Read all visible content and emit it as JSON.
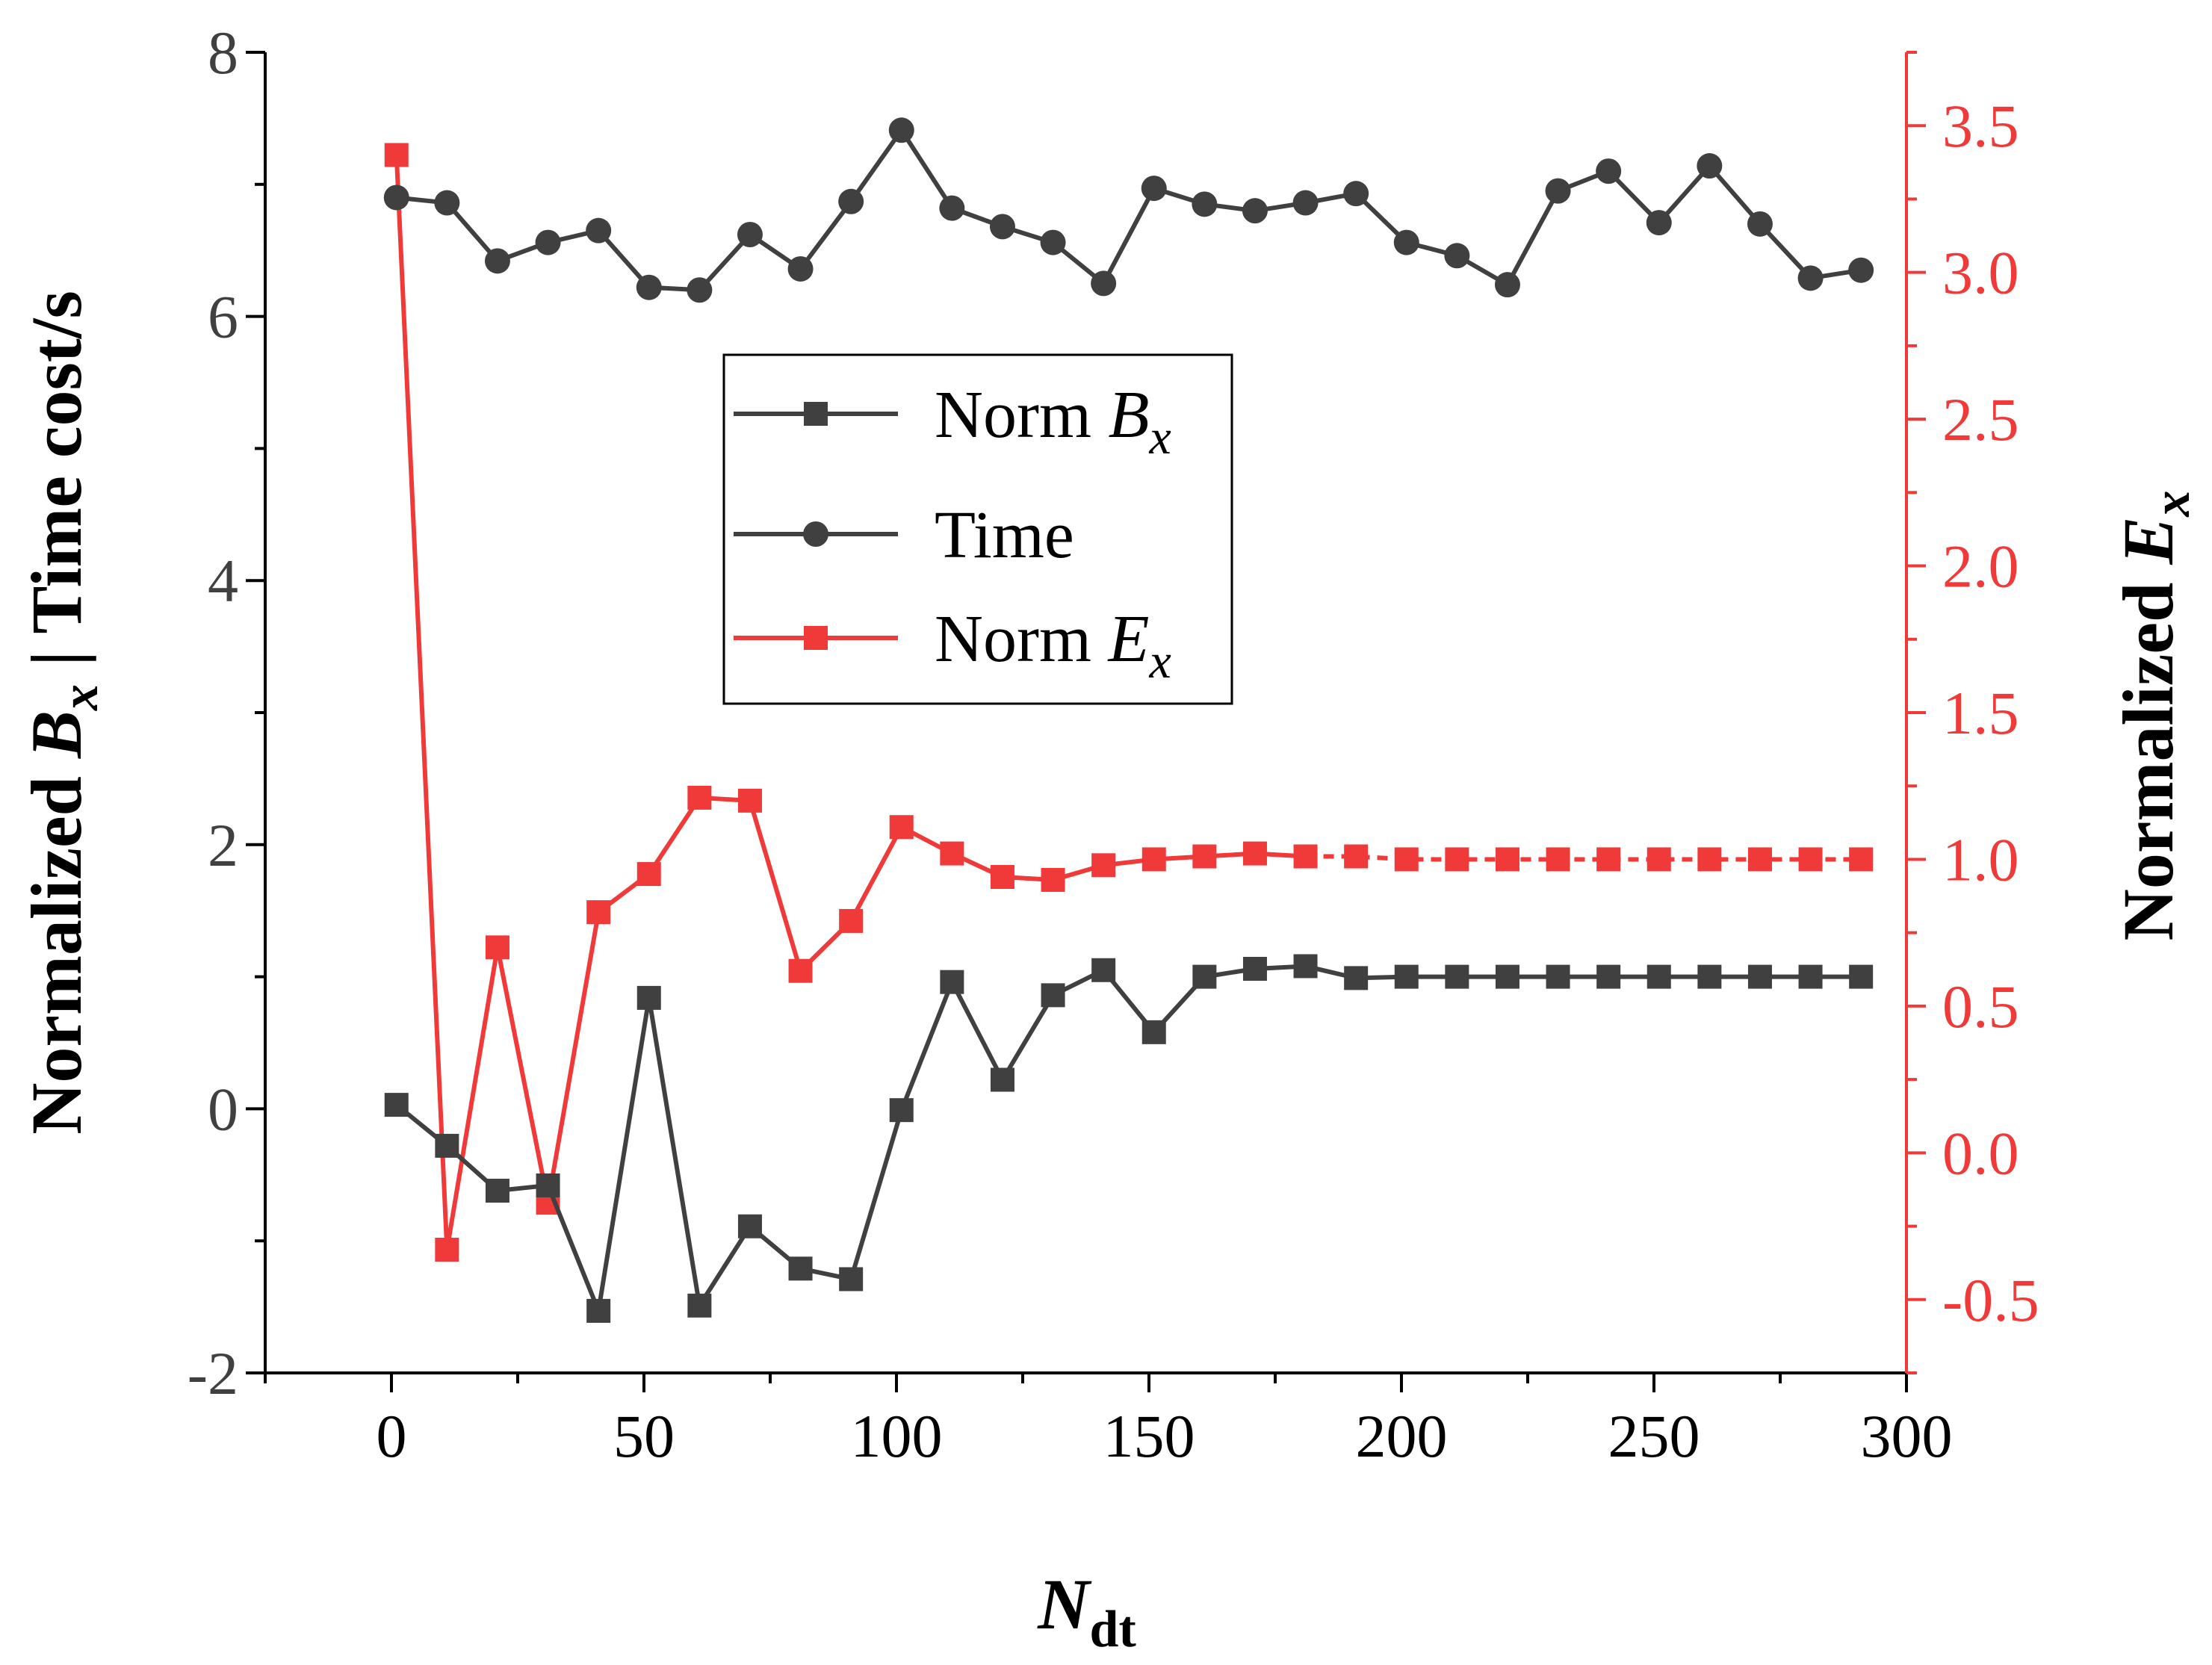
{
  "chart_data": {
    "type": "line",
    "x_axis": {
      "label_main": "N",
      "label_sub": "dt",
      "range": [
        -25,
        300
      ],
      "ticks": [
        0,
        50,
        100,
        150,
        200,
        250,
        300
      ],
      "tick_labels": [
        "0",
        "50",
        "100",
        "150",
        "200",
        "250",
        "300"
      ],
      "minor_step": 25
    },
    "y_left_axis": {
      "label_prefix": "Normalized ",
      "label_var": "B",
      "label_sub": "x",
      "label_suffix": " | Time cost/s",
      "range": [
        -2,
        8
      ],
      "ticks": [
        -2,
        0,
        2,
        4,
        6,
        8
      ],
      "tick_labels": [
        "-2",
        "0",
        "2",
        "4",
        "6",
        "8"
      ],
      "minor_step": 1
    },
    "y_right_axis": {
      "label_prefix": "Normalized ",
      "label_var": "E",
      "label_sub": "x",
      "range": [
        -0.75,
        3.75
      ],
      "ticks": [
        -0.5,
        0.0,
        0.5,
        1.0,
        1.5,
        2.0,
        2.5,
        3.0,
        3.5
      ],
      "tick_labels": [
        "-0.5",
        "0.0",
        "0.5",
        "1.0",
        "1.5",
        "2.0",
        "2.5",
        "3.0",
        "3.5"
      ],
      "minor_step": 0.25
    },
    "legend": {
      "position": "upper-center",
      "entries": [
        {
          "prefix": "Norm ",
          "var": "B",
          "sub": "x",
          "series": "norm_bx"
        },
        {
          "prefix": "Time",
          "var": "",
          "sub": "",
          "series": "time"
        },
        {
          "prefix": "Norm ",
          "var": "E",
          "sub": "x",
          "series": "norm_ex"
        }
      ]
    },
    "series": [
      {
        "id": "norm_bx",
        "name": "Norm Bx",
        "axis": "left",
        "color": "#404040",
        "marker": "square",
        "x": [
          1,
          11,
          21,
          31,
          41,
          51,
          61,
          71,
          81,
          91,
          101,
          111,
          121,
          131,
          141,
          151,
          161,
          171,
          181,
          191,
          201,
          211,
          221,
          231,
          241,
          251,
          261,
          271,
          281,
          291
        ],
        "y": [
          0.03,
          -0.28,
          -0.62,
          -0.58,
          -1.53,
          0.84,
          -1.49,
          -0.89,
          -1.21,
          -1.29,
          -0.01,
          0.96,
          0.22,
          0.86,
          1.05,
          0.58,
          1.0,
          1.06,
          1.08,
          0.99,
          1.0,
          1.0,
          1.0,
          1.0,
          1.0,
          1.0,
          1.0,
          1.0,
          1.0,
          1.0
        ]
      },
      {
        "id": "time",
        "name": "Time",
        "axis": "left",
        "color": "#404040",
        "marker": "circle",
        "x": [
          1,
          11,
          21,
          31,
          41,
          51,
          61,
          71,
          81,
          91,
          101,
          111,
          121,
          131,
          141,
          151,
          161,
          171,
          181,
          191,
          201,
          211,
          221,
          231,
          241,
          251,
          261,
          271,
          281,
          291
        ],
        "y": [
          6.9,
          6.86,
          6.42,
          6.56,
          6.65,
          6.22,
          6.2,
          6.62,
          6.36,
          6.87,
          7.41,
          6.82,
          6.68,
          6.56,
          6.25,
          6.97,
          6.85,
          6.8,
          6.86,
          6.93,
          6.56,
          6.46,
          6.24,
          6.95,
          7.1,
          6.71,
          7.14,
          6.7,
          6.29,
          6.35
        ]
      },
      {
        "id": "norm_ex",
        "name": "Norm Ex",
        "axis": "right",
        "color": "#f03a3a",
        "marker": "square",
        "x": [
          1,
          11,
          21,
          31,
          41,
          51,
          61,
          71,
          81,
          91,
          101,
          111,
          121,
          131,
          141,
          151,
          161,
          171,
          181,
          191,
          201,
          211,
          221,
          231,
          241,
          251,
          261,
          271,
          281,
          291
        ],
        "y": [
          3.4,
          -0.33,
          0.7,
          -0.17,
          0.82,
          0.95,
          1.21,
          1.2,
          0.62,
          0.79,
          1.11,
          1.02,
          0.94,
          0.93,
          0.98,
          1.0,
          1.01,
          1.02,
          1.01,
          1.01,
          1.0,
          1.0,
          1.0,
          1.0,
          1.0,
          1.0,
          1.0,
          1.0,
          1.0,
          1.0
        ]
      }
    ]
  }
}
